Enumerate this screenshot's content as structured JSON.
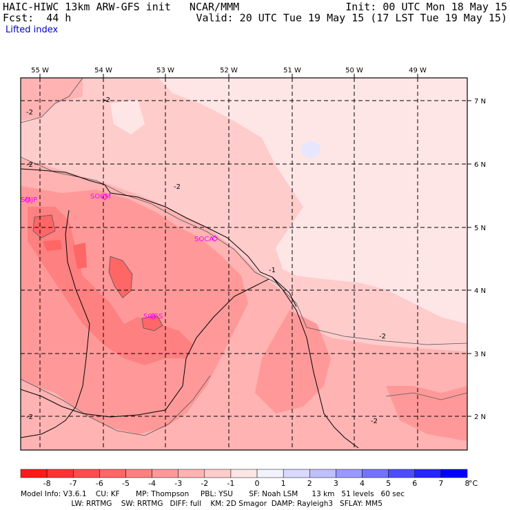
{
  "header": {
    "line1_left": "HAIC-HIWC 13km ARW-GFS init   NCAR/MMM",
    "line2_left": "Fcst:  44 h",
    "line1_right": "Init: 00 UTC Mon 18 May 15",
    "line2_right": "Valid: 20 UTC Tue 19 May 15 (17 LST Tue 19 May 15)",
    "field_name": "Lifted index"
  },
  "map": {
    "lon_labels": [
      "55 W",
      "54 W",
      "53 W",
      "52 W",
      "51 W",
      "50 W",
      "49 W"
    ],
    "lat_labels": [
      "7 N",
      "6 N",
      "5 N",
      "4 N",
      "3 N",
      "2 N"
    ],
    "stations": [
      "SMJP",
      "SOCM",
      "SOCA",
      "SOGS"
    ],
    "contour_labels": [
      "-2",
      "-2",
      "-2",
      "-2",
      "-2",
      "-2",
      "-2",
      "-1"
    ]
  },
  "colorbar": {
    "ticks": [
      "-8",
      "-7",
      "-6",
      "-5",
      "-4",
      "-3",
      "-2",
      "-1",
      "0",
      "1",
      "2",
      "3",
      "4",
      "5",
      "6",
      "7",
      "8"
    ],
    "unit": "°C",
    "colors": [
      "#ff1a1a",
      "#ff3333",
      "#ff4d4d",
      "#ff6666",
      "#ff8080",
      "#ff9999",
      "#ffb3b3",
      "#ffcccc",
      "#ffe6e6",
      "#f2f2ff",
      "#d9d9ff",
      "#bfbfff",
      "#9999ff",
      "#7373ff",
      "#4d4dff",
      "#2626ff",
      "#0000ff"
    ]
  },
  "footer": {
    "line1": "Model Info: V3.6.1    CU: KF       MP: Thompson     PBL: YSU       SF: Noah LSM      13 km   51 levels   60 sec",
    "line2": "                      LW: RRTMG    SW: RRTMG   DIFF: full    KM: 2D Smagor  DAMP: Rayleigh3   SFLAY: MM5"
  }
}
